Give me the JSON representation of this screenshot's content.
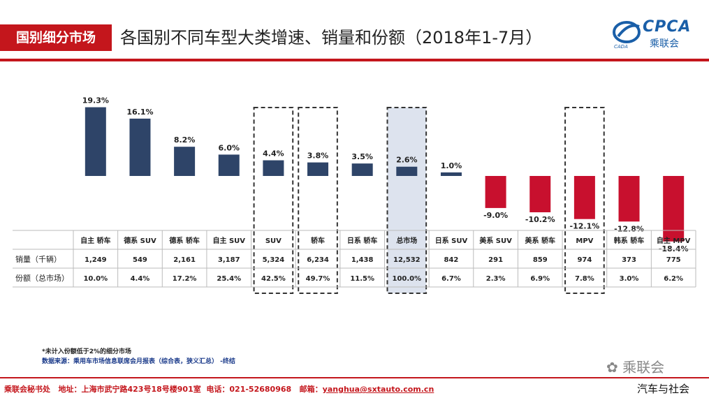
{
  "header": {
    "section_tag": "国别细分市场",
    "title": "各国别不同车型大类增速、销量和份额（2018年1-7月）",
    "logo_text": "CPCA",
    "logo_subtext": "乘联会"
  },
  "chart_data": {
    "type": "bar",
    "categories": [
      "自主 轿车",
      "德系 SUV",
      "德系 轿车",
      "自主 SUV",
      "SUV",
      "轿车",
      "日系 轿车",
      "总市场",
      "日系 SUV",
      "美系 SUV",
      "美系 轿车",
      "MPV",
      "韩系 轿车",
      "自主 MPV"
    ],
    "values": [
      19.3,
      16.1,
      8.2,
      6.0,
      4.4,
      3.8,
      3.5,
      2.6,
      1.0,
      -9.0,
      -10.2,
      -12.1,
      -12.8,
      -18.4
    ],
    "value_labels": [
      "19.3%",
      "16.1%",
      "8.2%",
      "6.0%",
      "4.4%",
      "3.8%",
      "3.5%",
      "2.6%",
      "1.0%",
      "-9.0%",
      "-10.2%",
      "-12.1%",
      "-12.8%",
      "-18.4%"
    ],
    "highlighted": [
      "SUV",
      "轿车",
      "总市场",
      "MPV"
    ],
    "shaded": [
      "总市场"
    ],
    "colors": {
      "positive": "#2e4468",
      "negative": "#c8102e",
      "highlight_fill": "#dde3ee",
      "dash": "#333333"
    },
    "table": {
      "rows": [
        {
          "label": "销量（千辆）",
          "values": [
            "1,249",
            "549",
            "2,161",
            "3,187",
            "5,324",
            "6,234",
            "1,438",
            "12,532",
            "842",
            "291",
            "859",
            "974",
            "373",
            "775"
          ]
        },
        {
          "label": "份额（总市场）",
          "values": [
            "10.0%",
            "4.4%",
            "17.2%",
            "25.4%",
            "42.5%",
            "49.7%",
            "11.5%",
            "100.0%",
            "6.7%",
            "2.3%",
            "6.9%",
            "7.8%",
            "3.0%",
            "6.2%"
          ]
        }
      ]
    }
  },
  "notes": {
    "note1": "*未计入份额低于2%的细分市场",
    "note2": "数据来源：乘用车市场信息联席会月报表（综合表，狭义汇总）  -终结"
  },
  "footer": {
    "org": "乘联会秘书处",
    "address": "地址：上海市武宁路423号18号楼901室",
    "phone": "电话：021-52680968",
    "email_label": "邮箱：",
    "email": "yanghua@sxtauto.com.cn"
  },
  "wechat_label": "乘联会",
  "watermark": "汽车与社会"
}
